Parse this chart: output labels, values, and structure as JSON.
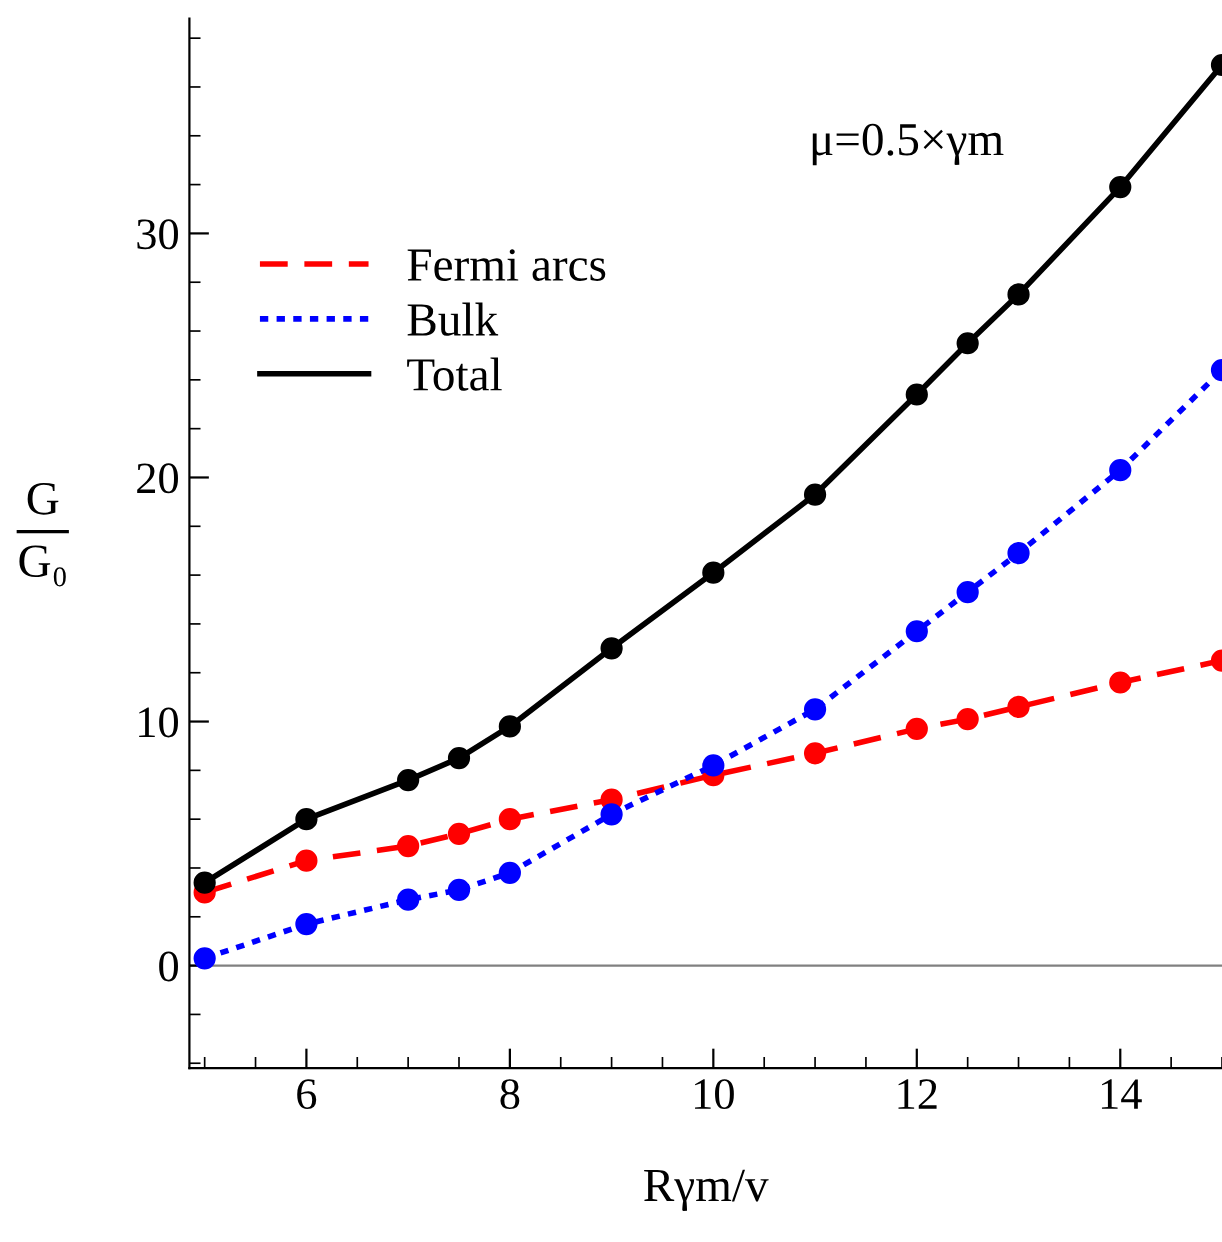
{
  "chart_data": {
    "type": "line",
    "xlabel": "Rγm/v",
    "ylabel": "G\nG₀",
    "annotations": [
      "μ=0.5×γm"
    ],
    "x": [
      5,
      6,
      7,
      7.5,
      8,
      9,
      10,
      11,
      12,
      12.5,
      13,
      14,
      15
    ],
    "series": [
      {
        "name": "Fermi arcs",
        "color": "#ff0000",
        "line_style": "dashed",
        "values": [
          3.0,
          4.3,
          4.9,
          5.4,
          6.0,
          6.8,
          7.8,
          8.7,
          9.7,
          10.1,
          10.6,
          11.6,
          12.5
        ]
      },
      {
        "name": "Bulk",
        "color": "#0000ff",
        "line_style": "dotted",
        "values": [
          0.3,
          1.7,
          2.7,
          3.1,
          3.8,
          6.2,
          8.2,
          10.5,
          13.7,
          15.3,
          16.9,
          20.3,
          24.4
        ]
      },
      {
        "name": "Total",
        "color": "#000000",
        "line_style": "solid",
        "values": [
          3.4,
          6.0,
          7.6,
          8.5,
          9.8,
          13.0,
          16.1,
          19.3,
          23.4,
          25.5,
          27.5,
          31.9,
          36.9
        ]
      }
    ],
    "marker": "circle",
    "xlim": [
      4.85,
      15
    ],
    "ylim": [
      -4.2,
      38.8
    ],
    "xticks": [
      6,
      8,
      10,
      12,
      14
    ],
    "yticks": [
      0,
      10,
      20,
      30
    ],
    "ref_lines": [
      {
        "axis": "y",
        "value": 0,
        "color": "#808080"
      }
    ],
    "grid": false,
    "legend": "top left"
  }
}
